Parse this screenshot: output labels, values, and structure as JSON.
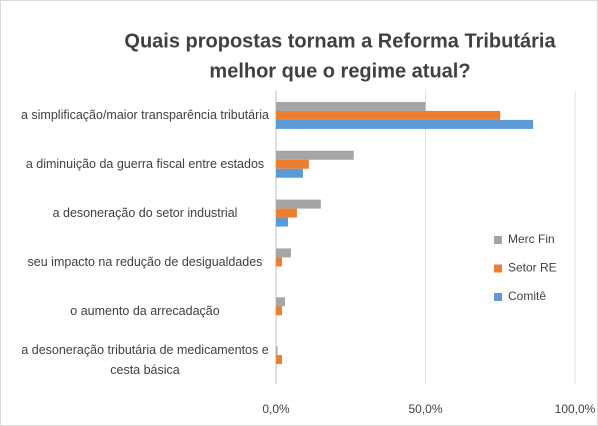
{
  "chart_data": {
    "type": "hbar",
    "title": [
      "Quais propostas tornam a Reforma Tributária",
      "melhor que o regime atual?"
    ],
    "categories": [
      "a simplificação/maior transparência tributária",
      "a diminuição da guerra fiscal entre estados",
      "a desoneração do setor industrial",
      "seu impacto  na redução de desigualdades",
      "o aumento da arrecadação",
      "a desoneração tributária de medicamentos e cesta básica"
    ],
    "series": [
      {
        "name": "Merc Fin",
        "color": "#a5a5a5",
        "values": [
          50,
          26,
          15,
          5,
          3,
          0.5
        ]
      },
      {
        "name": "Setor RE",
        "color": "#ed7d31",
        "values": [
          75,
          11,
          7,
          2,
          2,
          2
        ]
      },
      {
        "name": "Comitê",
        "color": "#5b9bd5",
        "values": [
          86,
          9,
          4,
          0,
          0,
          0
        ]
      }
    ],
    "xlim": [
      0,
      100
    ],
    "xticks": [
      {
        "value": 0,
        "label": "0,0%"
      },
      {
        "value": 50,
        "label": "50,0%"
      },
      {
        "value": 100,
        "label": "100,0%"
      }
    ],
    "grid": true,
    "legend": "right"
  }
}
